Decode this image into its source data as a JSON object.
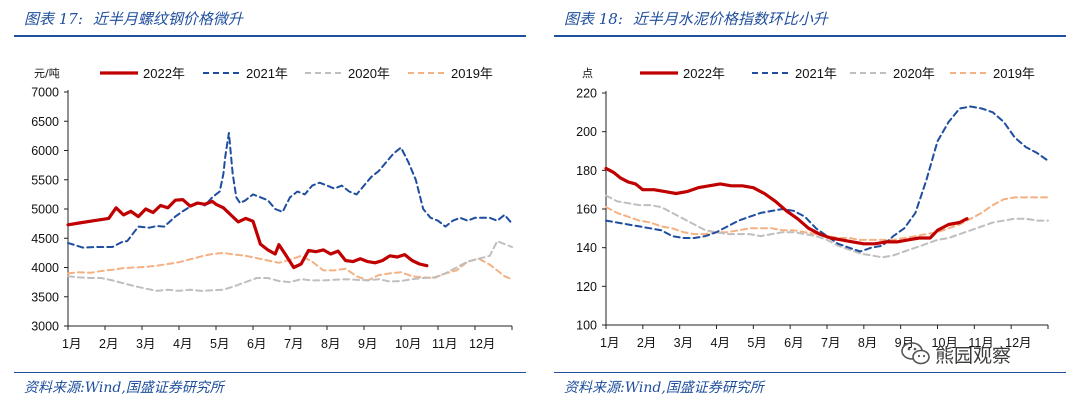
{
  "panels": [
    {
      "title_label": "图表 17:",
      "title_text": "近半月螺纹钢价格微升",
      "source": "资料来源:Wind,国盛证券研究所"
    },
    {
      "title_label": "图表 18:",
      "title_text": "近半月水泥价格指数环比小升",
      "source": "资料来源:Wind,国盛证券研究所"
    }
  ],
  "watermark": {
    "text": "熊园观察",
    "icon": "wechat-icon"
  },
  "colors": {
    "accent": "#1f4e9c",
    "s2022": "#c00000",
    "s2021": "#1f4ea0",
    "s2020": "#bfbfbf",
    "s2019": "#f4b183"
  },
  "chart_data": [
    {
      "type": "line",
      "ylabel": "元/吨",
      "ylim": [
        3000,
        7000
      ],
      "yticks": [
        3000,
        3500,
        4000,
        4500,
        5000,
        5500,
        6000,
        6500,
        7000
      ],
      "xlim": [
        1,
        13
      ],
      "xticks": [
        1,
        2,
        3,
        4,
        5,
        6,
        7,
        8,
        9,
        10,
        11,
        12
      ],
      "xtick_labels": [
        "1月",
        "2月",
        "3月",
        "4月",
        "5月",
        "6月",
        "7月",
        "8月",
        "9月",
        "10月",
        "11月",
        "12月"
      ],
      "legend": [
        "2022年",
        "2021年",
        "2020年",
        "2019年"
      ],
      "series": [
        {
          "name": "2022年",
          "x": [
            1.0,
            1.3,
            1.7,
            2.1,
            2.3,
            2.5,
            2.7,
            2.9,
            3.1,
            3.3,
            3.5,
            3.7,
            3.9,
            4.1,
            4.3,
            4.5,
            4.7,
            4.9,
            5.0,
            5.2,
            5.4,
            5.6,
            5.8,
            6.0,
            6.2,
            6.4,
            6.6,
            6.7,
            6.9,
            7.1,
            7.3,
            7.5,
            7.7,
            7.9,
            8.1,
            8.3,
            8.5,
            8.7,
            8.9,
            9.1,
            9.3,
            9.5,
            9.7,
            9.9,
            10.1,
            10.3,
            10.5,
            10.7
          ],
          "y": [
            4730,
            4760,
            4800,
            4840,
            5020,
            4900,
            4960,
            4870,
            5000,
            4940,
            5060,
            5020,
            5150,
            5160,
            5050,
            5100,
            5080,
            5130,
            5080,
            5020,
            4900,
            4780,
            4840,
            4790,
            4400,
            4300,
            4230,
            4390,
            4200,
            4000,
            4060,
            4290,
            4270,
            4300,
            4230,
            4280,
            4120,
            4100,
            4150,
            4100,
            4080,
            4120,
            4200,
            4180,
            4220,
            4120,
            4060,
            4030
          ]
        },
        {
          "name": "2021年",
          "x": [
            1.0,
            1.2,
            1.4,
            1.8,
            2.2,
            2.5,
            2.6,
            2.9,
            3.2,
            3.4,
            3.6,
            3.9,
            4.1,
            4.3,
            4.5,
            4.7,
            4.9,
            5.1,
            5.2,
            5.25,
            5.35,
            5.45,
            5.55,
            5.65,
            5.8,
            6.0,
            6.2,
            6.4,
            6.6,
            6.8,
            7.0,
            7.2,
            7.4,
            7.6,
            7.8,
            8.0,
            8.2,
            8.4,
            8.6,
            8.8,
            9.0,
            9.2,
            9.4,
            9.6,
            9.8,
            10.0,
            10.2,
            10.4,
            10.6,
            10.8,
            11.0,
            11.2,
            11.4,
            11.6,
            11.8,
            12.0,
            12.2,
            12.4,
            12.6,
            12.8,
            13.0
          ],
          "y": [
            4420,
            4380,
            4340,
            4350,
            4350,
            4450,
            4450,
            4700,
            4680,
            4710,
            4700,
            4870,
            4960,
            5040,
            5120,
            5060,
            5200,
            5300,
            5600,
            5900,
            6300,
            5600,
            5200,
            5100,
            5150,
            5250,
            5200,
            5150,
            5000,
            4950,
            5200,
            5300,
            5250,
            5400,
            5450,
            5400,
            5350,
            5400,
            5300,
            5250,
            5400,
            5550,
            5650,
            5800,
            5950,
            6050,
            5800,
            5500,
            5000,
            4850,
            4800,
            4700,
            4800,
            4850,
            4800,
            4850,
            4850,
            4850,
            4800,
            4900,
            4750
          ]
        },
        {
          "name": "2020年",
          "x": [
            1.0,
            1.3,
            1.6,
            1.9,
            2.2,
            2.5,
            2.8,
            3.1,
            3.4,
            3.7,
            4.0,
            4.3,
            4.6,
            4.9,
            5.2,
            5.5,
            5.8,
            6.1,
            6.4,
            6.7,
            7.0,
            7.3,
            7.6,
            7.9,
            8.2,
            8.5,
            8.8,
            9.1,
            9.4,
            9.7,
            10.0,
            10.3,
            10.6,
            10.9,
            11.2,
            11.5,
            11.8,
            12.1,
            12.4,
            12.6,
            12.8,
            13.0
          ],
          "y": [
            3850,
            3830,
            3820,
            3820,
            3780,
            3730,
            3680,
            3640,
            3600,
            3620,
            3600,
            3620,
            3600,
            3610,
            3620,
            3680,
            3750,
            3820,
            3820,
            3770,
            3750,
            3800,
            3780,
            3780,
            3790,
            3800,
            3790,
            3780,
            3800,
            3760,
            3770,
            3800,
            3820,
            3830,
            3900,
            4000,
            4100,
            4150,
            4200,
            4450,
            4400,
            4350
          ]
        },
        {
          "name": "2019年",
          "x": [
            1.0,
            1.3,
            1.6,
            1.9,
            2.2,
            2.5,
            2.8,
            3.1,
            3.4,
            3.7,
            4.0,
            4.3,
            4.6,
            4.9,
            5.2,
            5.5,
            5.8,
            6.1,
            6.4,
            6.7,
            7.0,
            7.3,
            7.6,
            7.9,
            8.2,
            8.5,
            8.8,
            9.1,
            9.4,
            9.7,
            10.0,
            10.3,
            10.6,
            10.9,
            11.2,
            11.5,
            11.8,
            12.1,
            12.4,
            12.6,
            12.8,
            13.0
          ],
          "y": [
            3900,
            3920,
            3910,
            3940,
            3960,
            3990,
            4000,
            4010,
            4030,
            4060,
            4090,
            4140,
            4190,
            4230,
            4250,
            4220,
            4200,
            4160,
            4120,
            4080,
            4130,
            4200,
            4100,
            3950,
            3950,
            3980,
            3850,
            3780,
            3870,
            3900,
            3920,
            3850,
            3830,
            3820,
            3900,
            3950,
            4100,
            4150,
            4050,
            3950,
            3850,
            3800
          ]
        }
      ]
    },
    {
      "type": "line",
      "ylabel": "点",
      "ylim": [
        100,
        220
      ],
      "yticks": [
        100,
        120,
        140,
        160,
        180,
        200,
        220
      ],
      "xlim": [
        1,
        13
      ],
      "xticks": [
        1,
        2,
        3,
        4,
        5,
        6,
        7,
        8,
        9,
        10,
        11,
        12
      ],
      "xtick_labels": [
        "1月",
        "2月",
        "3月",
        "4月",
        "5月",
        "6月",
        "7月",
        "8月",
        "9月",
        "10月",
        "11月",
        "12月"
      ],
      "legend": [
        "2022年",
        "2021年",
        "2020年",
        "2019年"
      ],
      "series": [
        {
          "name": "2022年",
          "x": [
            1.0,
            1.2,
            1.4,
            1.6,
            1.8,
            2.0,
            2.3,
            2.6,
            2.9,
            3.2,
            3.5,
            3.8,
            4.1,
            4.4,
            4.7,
            5.0,
            5.3,
            5.6,
            5.9,
            6.2,
            6.5,
            6.8,
            7.1,
            7.4,
            7.7,
            8.0,
            8.3,
            8.6,
            8.9,
            9.2,
            9.5,
            9.8,
            10.0,
            10.3,
            10.6,
            10.8
          ],
          "y": [
            181,
            179,
            176,
            174,
            173,
            170,
            170,
            169,
            168,
            169,
            171,
            172,
            173,
            172,
            172,
            171,
            168,
            164,
            159,
            155,
            150,
            147,
            145,
            144,
            143,
            142,
            142,
            143,
            143,
            144,
            145,
            145,
            149,
            152,
            153,
            155
          ]
        },
        {
          "name": "2021年",
          "x": [
            1.0,
            1.3,
            1.6,
            1.9,
            2.2,
            2.5,
            2.8,
            3.1,
            3.4,
            3.7,
            4.0,
            4.3,
            4.6,
            4.9,
            5.2,
            5.5,
            5.8,
            6.1,
            6.4,
            6.7,
            7.0,
            7.3,
            7.6,
            7.9,
            8.2,
            8.5,
            8.8,
            9.1,
            9.4,
            9.7,
            10.0,
            10.3,
            10.6,
            10.9,
            11.2,
            11.5,
            11.8,
            12.1,
            12.4,
            12.7,
            13.0
          ],
          "y": [
            154,
            153,
            152,
            151,
            150,
            149,
            146,
            145,
            145,
            146,
            148,
            151,
            154,
            156,
            158,
            159,
            160,
            159,
            156,
            150,
            146,
            142,
            140,
            138,
            140,
            141,
            146,
            150,
            158,
            175,
            195,
            205,
            212,
            213,
            212,
            210,
            205,
            197,
            192,
            189,
            185
          ]
        },
        {
          "name": "2020年",
          "x": [
            1.0,
            1.3,
            1.6,
            1.9,
            2.2,
            2.5,
            2.8,
            3.1,
            3.4,
            3.7,
            4.0,
            4.3,
            4.6,
            4.9,
            5.2,
            5.5,
            5.8,
            6.1,
            6.4,
            6.7,
            7.0,
            7.3,
            7.6,
            7.9,
            8.2,
            8.5,
            8.8,
            9.1,
            9.4,
            9.7,
            10.0,
            10.3,
            10.6,
            10.9,
            11.2,
            11.5,
            11.8,
            12.1,
            12.4,
            12.7,
            13.0
          ],
          "y": [
            167,
            164,
            163,
            162,
            162,
            161,
            158,
            155,
            152,
            149,
            148,
            147,
            147,
            147,
            146,
            147,
            148,
            148,
            147,
            146,
            144,
            141,
            139,
            137,
            136,
            135,
            136,
            138,
            140,
            142,
            144,
            145,
            147,
            149,
            151,
            153,
            154,
            155,
            155,
            154,
            154
          ]
        },
        {
          "name": "2019年",
          "x": [
            1.0,
            1.3,
            1.6,
            1.9,
            2.2,
            2.5,
            2.8,
            3.1,
            3.4,
            3.7,
            4.0,
            4.3,
            4.6,
            4.9,
            5.2,
            5.5,
            5.8,
            6.1,
            6.4,
            6.7,
            7.0,
            7.3,
            7.6,
            7.9,
            8.2,
            8.5,
            8.8,
            9.1,
            9.4,
            9.7,
            10.0,
            10.3,
            10.6,
            10.9,
            11.2,
            11.5,
            11.8,
            12.1,
            12.4,
            12.7,
            13.0
          ],
          "y": [
            161,
            158,
            156,
            154,
            153,
            151,
            150,
            148,
            147,
            147,
            148,
            148,
            149,
            150,
            150,
            150,
            149,
            149,
            148,
            147,
            146,
            145,
            145,
            144,
            144,
            144,
            144,
            145,
            146,
            147,
            148,
            150,
            152,
            155,
            158,
            162,
            165,
            166,
            166,
            166,
            166
          ]
        }
      ]
    }
  ]
}
